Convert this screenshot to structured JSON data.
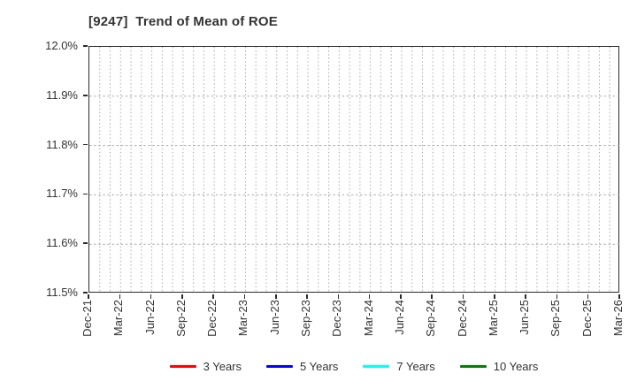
{
  "title": "[9247]  Trend of Mean of ROE",
  "chart_data": {
    "type": "line",
    "title": "[9247]  Trend of Mean of ROE",
    "categories": [
      "Dec-21",
      "Mar-22",
      "Jun-22",
      "Sep-22",
      "Dec-22",
      "Mar-23",
      "Jun-23",
      "Sep-23",
      "Dec-23",
      "Mar-24",
      "Jun-24",
      "Sep-24",
      "Dec-24",
      "Mar-25",
      "Jun-25",
      "Sep-25",
      "Dec-25",
      "Mar-26"
    ],
    "x_minor_gridlines_per_interval": 3,
    "xlabel": "",
    "ylabel": "",
    "ylim": [
      11.5,
      12.0
    ],
    "ytick_values": [
      12.0,
      11.9,
      11.8,
      11.7,
      11.6,
      11.5
    ],
    "ytick_labels": [
      "12.0%",
      "11.9%",
      "11.8%",
      "11.7%",
      "11.6%",
      "11.5%"
    ],
    "grid": true,
    "legend_position": "bottom",
    "series": [
      {
        "name": "3 Years",
        "color": "#ff0000",
        "values": []
      },
      {
        "name": "5 Years",
        "color": "#0000ff",
        "values": []
      },
      {
        "name": "7 Years",
        "color": "#00ffff",
        "values": []
      },
      {
        "name": "10 Years",
        "color": "#008000",
        "values": []
      }
    ],
    "plotted_data_visible": false
  },
  "colors": {
    "axis_border": "#2b2b2b",
    "grid": "#ababab",
    "text": "#333333",
    "background": "#ffffff"
  }
}
